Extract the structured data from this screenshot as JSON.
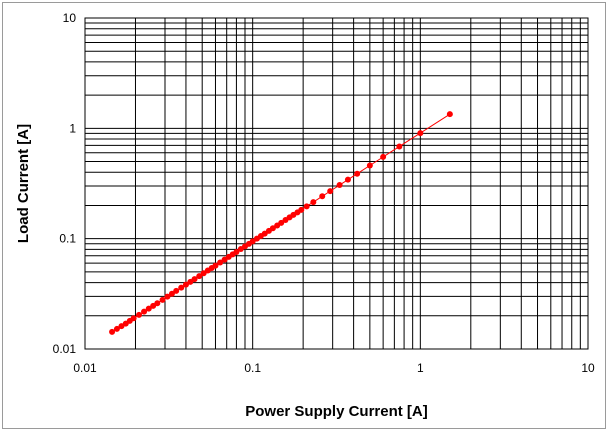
{
  "chart_data": {
    "type": "scatter",
    "title": "",
    "xlabel": "Power Supply Current [A]",
    "ylabel": "Load Current [A]",
    "xscale": "log",
    "yscale": "log",
    "xlim": [
      0.01,
      10
    ],
    "ylim": [
      0.01,
      10
    ],
    "grid": true,
    "legend": "none",
    "x_tick_labels": [
      "0.01",
      "0.1",
      "1",
      "10"
    ],
    "y_tick_labels": [
      "0.01",
      "0.1",
      "1",
      "10"
    ],
    "series_color": "#ff0000",
    "marker": "circle",
    "line": true,
    "series": [
      {
        "x": [
          0.0145,
          0.0155,
          0.0165,
          0.0175,
          0.0185,
          0.0195,
          0.021,
          0.0225,
          0.024,
          0.0255,
          0.027,
          0.029,
          0.031,
          0.033,
          0.035,
          0.0375,
          0.04,
          0.0425,
          0.045,
          0.048,
          0.051,
          0.054,
          0.057,
          0.06,
          0.064,
          0.068,
          0.072,
          0.076,
          0.08,
          0.085,
          0.09,
          0.095,
          0.1,
          0.106,
          0.112,
          0.118,
          0.125,
          0.132,
          0.14,
          0.148,
          0.157,
          0.166,
          0.175,
          0.185,
          0.195,
          0.21,
          0.23,
          0.26,
          0.29,
          0.33,
          0.37,
          0.42,
          0.5,
          0.6,
          0.75,
          1.0,
          1.5
        ],
        "y": [
          0.0143,
          0.0152,
          0.0161,
          0.017,
          0.018,
          0.019,
          0.0204,
          0.0218,
          0.0232,
          0.0246,
          0.026,
          0.0279,
          0.0298,
          0.0317,
          0.0336,
          0.036,
          0.0383,
          0.0406,
          0.043,
          0.0458,
          0.0486,
          0.0514,
          0.0542,
          0.057,
          0.0608,
          0.0645,
          0.0683,
          0.072,
          0.0758,
          0.0805,
          0.0852,
          0.0898,
          0.0945,
          0.1,
          0.1056,
          0.1112,
          0.1178,
          0.1243,
          0.1317,
          0.1392,
          0.1475,
          0.1558,
          0.1641,
          0.1733,
          0.1825,
          0.1963,
          0.2146,
          0.2421,
          0.2696,
          0.3062,
          0.3426,
          0.388,
          0.4604,
          0.5505,
          0.6849,
          0.9054,
          1.3439
        ]
      }
    ]
  }
}
